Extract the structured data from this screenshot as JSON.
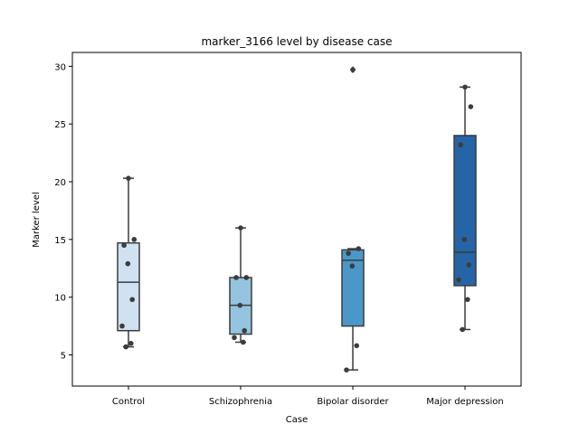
{
  "chart_data": {
    "type": "box",
    "title": "marker_3166 level by disease case",
    "xlabel": "Case",
    "ylabel": "Marker level",
    "ylim": [
      2.3,
      31.2
    ],
    "yticks": [
      5,
      10,
      15,
      20,
      25,
      30
    ],
    "categories": [
      "Control",
      "Schizophrenia",
      "Bipolar disorder",
      "Major depression"
    ],
    "grid": false,
    "boxes": [
      {
        "q1": 7.1,
        "median": 11.3,
        "q3": 14.7,
        "whisker_low": 5.7,
        "whisker_high": 20.3,
        "outliers": []
      },
      {
        "q1": 6.8,
        "median": 9.3,
        "q3": 11.7,
        "whisker_low": 6.1,
        "whisker_high": 16.0,
        "outliers": []
      },
      {
        "q1": 7.5,
        "median": 13.2,
        "q3": 14.1,
        "whisker_low": 3.7,
        "whisker_high": 14.2,
        "outliers": [
          29.7
        ]
      },
      {
        "q1": 11.0,
        "median": 13.9,
        "q3": 24.0,
        "whisker_low": 7.2,
        "whisker_high": 28.2,
        "outliers": []
      }
    ],
    "points": [
      [
        20.3,
        15.0,
        14.5,
        12.9,
        9.8,
        7.5,
        6.0,
        5.7
      ],
      [
        16.0,
        11.7,
        11.7,
        9.3,
        7.1,
        6.5,
        6.1
      ],
      [
        29.7,
        14.2,
        13.8,
        12.7,
        5.8,
        3.7
      ],
      [
        28.2,
        26.5,
        23.2,
        15.0,
        12.8,
        11.5,
        9.8,
        7.2
      ]
    ],
    "colors": {
      "boxes": [
        "#d0e1f2",
        "#94c4df",
        "#4a98c9",
        "#2565a7"
      ],
      "lines": "#3c3c3c",
      "points": "#3c3c3c"
    }
  }
}
